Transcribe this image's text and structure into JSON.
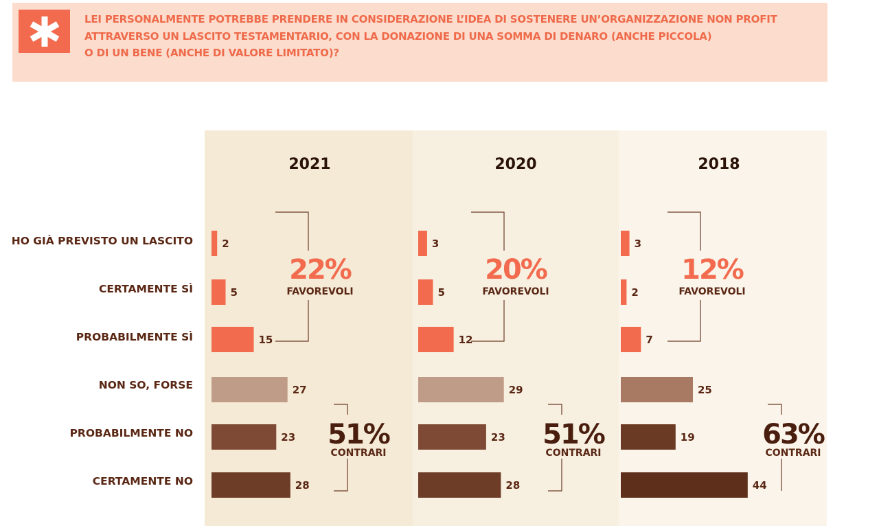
{
  "question": {
    "lines": [
      "LEI PERSONALMENTE POTREBBE PRENDERE IN CONSIDERAZIONE L’IDEA DI SOSTENERE UN’ORGANIZZAZIONE NON PROFIT",
      "ATTRAVERSO UN LASCITO TESTAMENTARIO, CON LA DONAZIONE DI UNA SOMMA DI DENARO (ANCHE PICCOLA)",
      "O DI UN BENE (ANCHE DI VALORE LIMITATO)?"
    ]
  },
  "icon": "asterisk-icon",
  "colors": {
    "header_bg": "#fcdccd",
    "accent": "#f26b4e",
    "label": "#5a2714",
    "panel_2021": "#f4ead6",
    "panel_2020": "#f7f0e1",
    "panel_2018": "#fbf4ea"
  },
  "chart_data": {
    "type": "bar",
    "orientation": "horizontal",
    "categories": [
      "HO GIÀ PREVISTO UN LASCITO",
      "CERTAMENTE SÌ",
      "PROBABILMENTE SÌ",
      "NON SO, FORSE",
      "PROBABILMENTE NO",
      "CERTAMENTE NO"
    ],
    "unit": "%",
    "bar_colors": [
      "#f26b4e",
      "#f26b4e",
      "#f26b4e",
      "#bf9c87",
      "#7e4a35",
      "#6e3d28"
    ],
    "bar_colors_2018": [
      "#f26b4e",
      "#f26b4e",
      "#f26b4e",
      "#a87a63",
      "#6b3a25",
      "#5e2f1b"
    ],
    "series": [
      {
        "name": "2021",
        "values": [
          2,
          5,
          15,
          27,
          23,
          28
        ],
        "favorevoli": {
          "value": "22%",
          "label": "FAVOREVOLI"
        },
        "contrari": {
          "value": "51%",
          "label": "CONTRARI"
        }
      },
      {
        "name": "2020",
        "values": [
          3,
          5,
          12,
          29,
          23,
          28
        ],
        "favorevoli": {
          "value": "20%",
          "label": "FAVOREVOLI"
        },
        "contrari": {
          "value": "51%",
          "label": "CONTRARI"
        }
      },
      {
        "name": "2018",
        "values": [
          3,
          2,
          7,
          25,
          19,
          44
        ],
        "favorevoli": {
          "value": "12%",
          "label": "FAVOREVOLI"
        },
        "contrari": {
          "value": "63%",
          "label": "CONTRARI"
        }
      }
    ]
  }
}
